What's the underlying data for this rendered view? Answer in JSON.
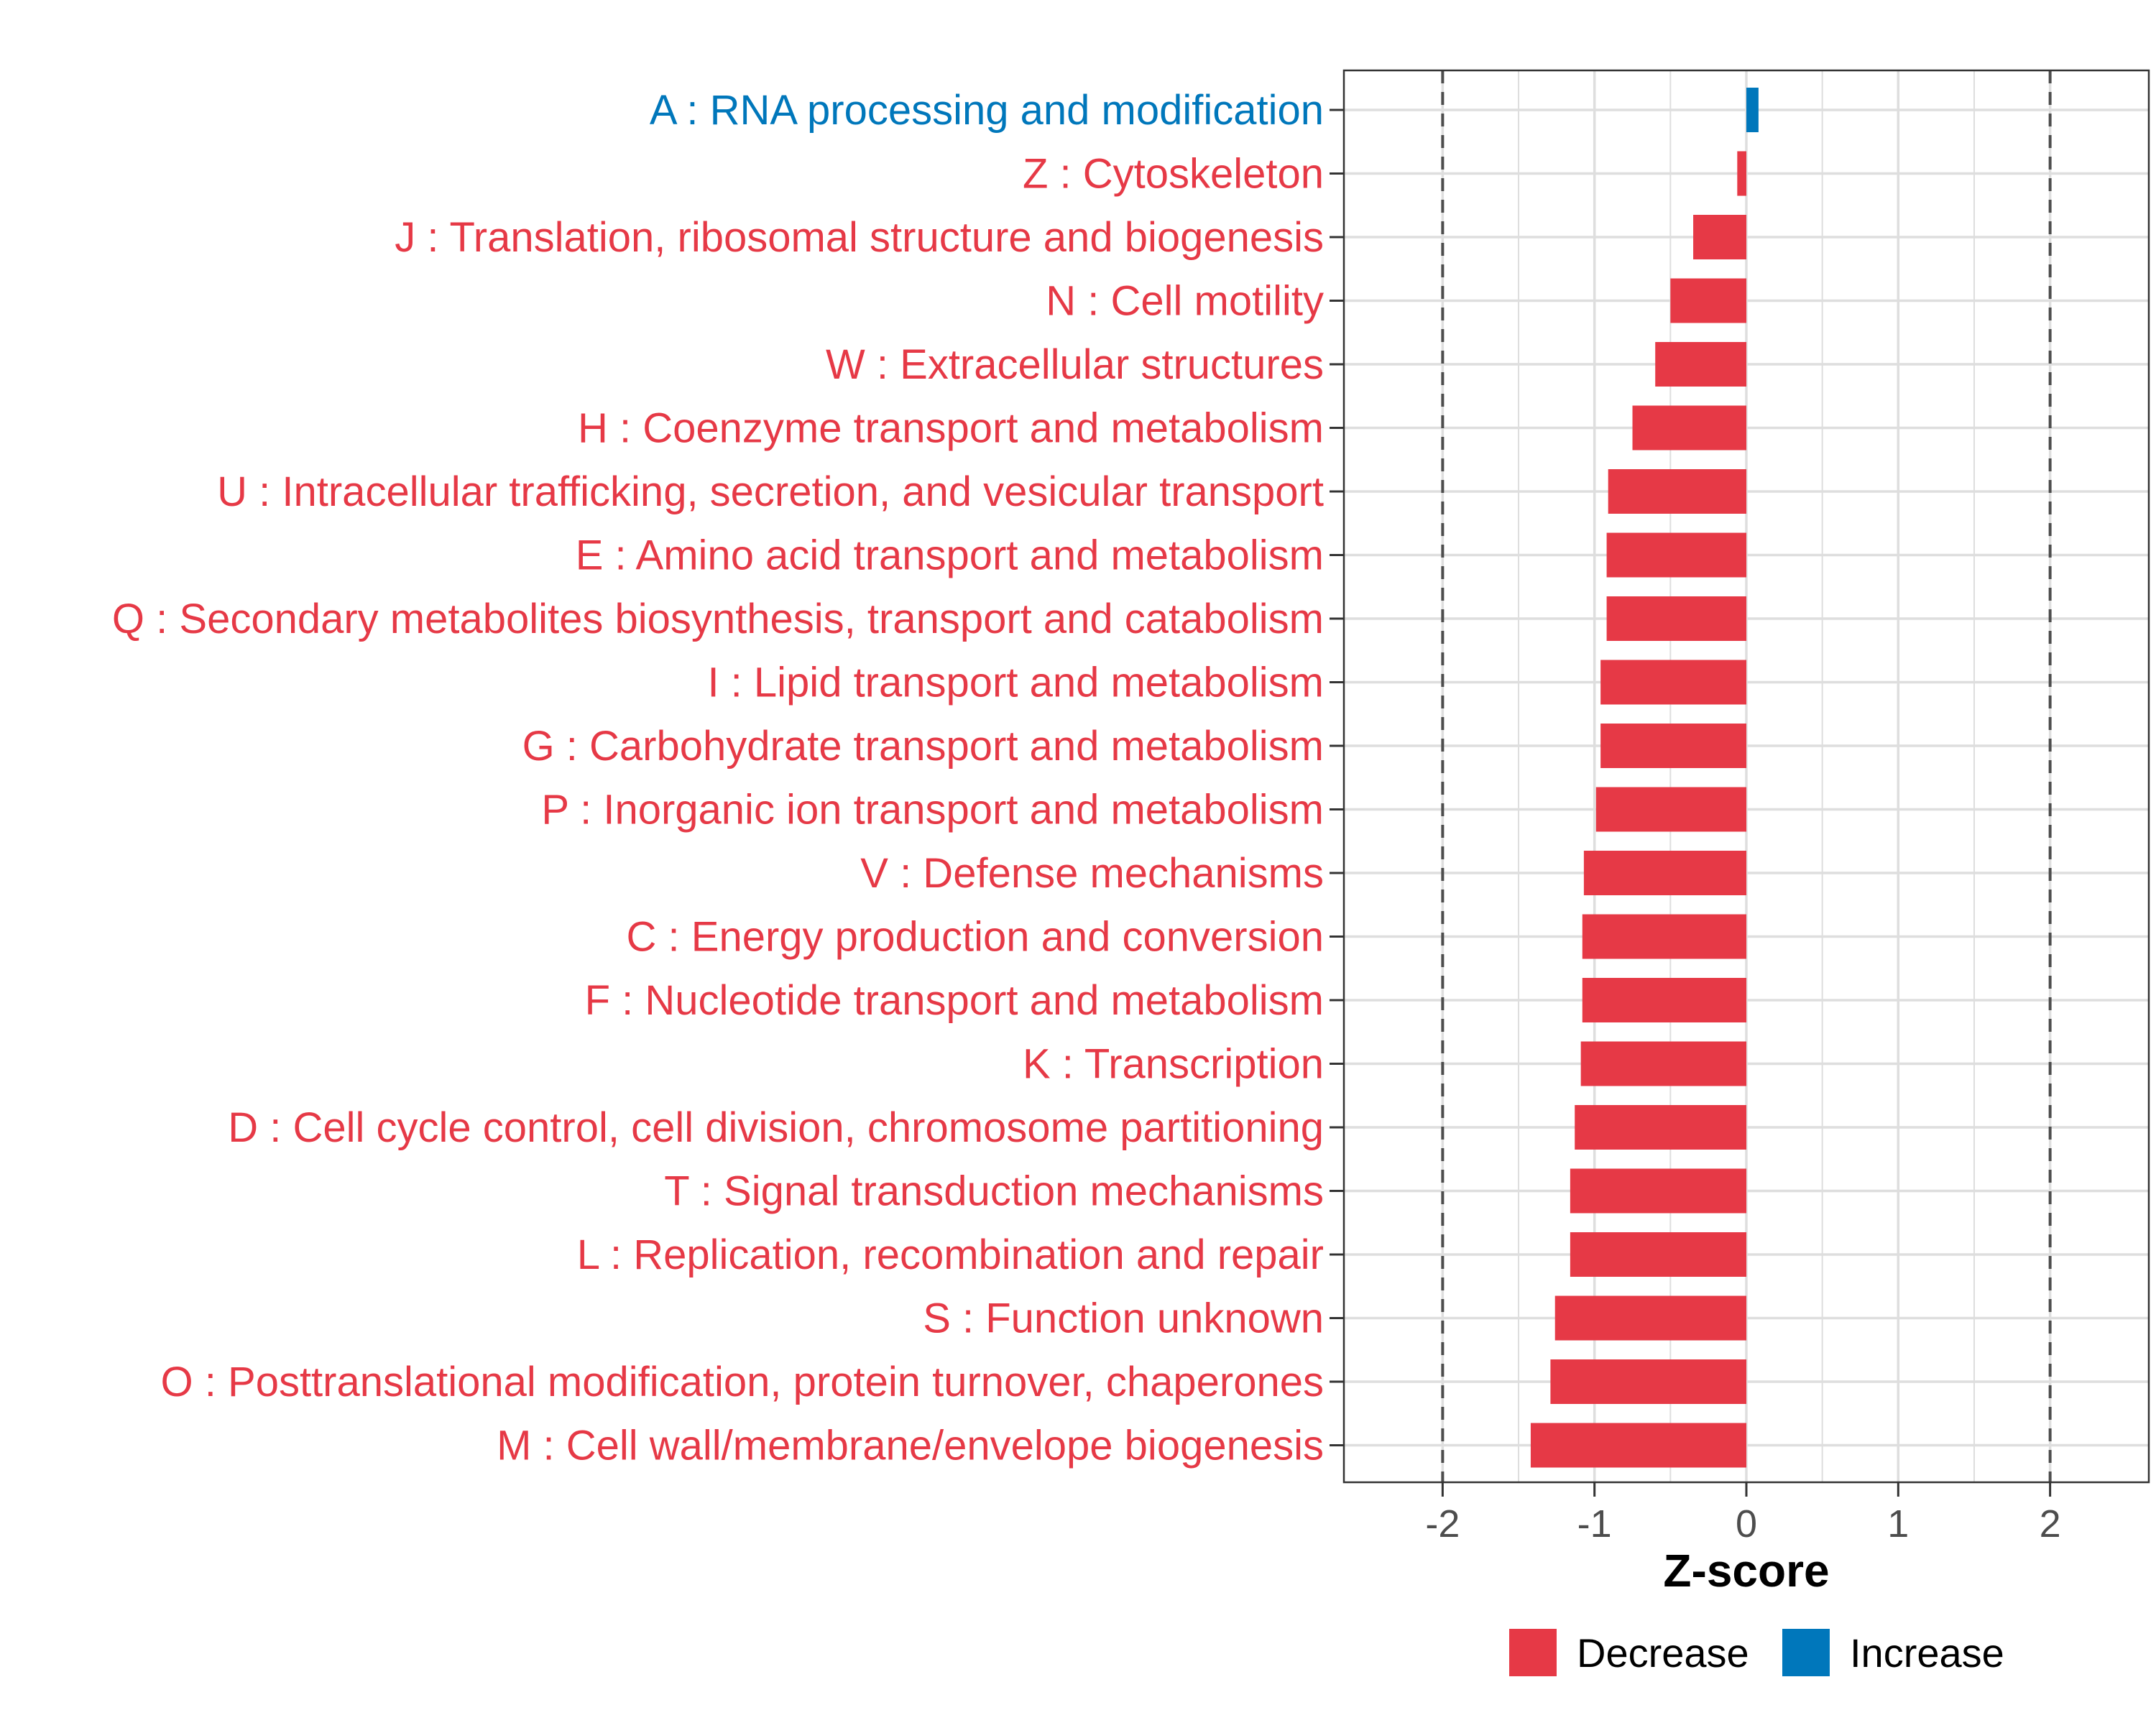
{
  "chart_data": {
    "type": "bar",
    "orientation": "horizontal",
    "title": "",
    "xlabel": "Z-score",
    "ylabel": "",
    "xlim": [
      -2.65,
      2.65
    ],
    "xticks": [
      -2,
      -1,
      0,
      1,
      2
    ],
    "xtick_labels": [
      "-2",
      "-1",
      "0",
      "1",
      "2"
    ],
    "reference_lines": [
      -2,
      2
    ],
    "grid": true,
    "categories": [
      "A : RNA processing and modification",
      "Z : Cytoskeleton",
      "J : Translation, ribosomal structure and biogenesis",
      "N : Cell motility",
      "W : Extracellular structures",
      "H : Coenzyme transport and metabolism",
      "U : Intracellular trafficking, secretion, and vesicular transport",
      "E : Amino acid transport and metabolism",
      "Q : Secondary metabolites biosynthesis, transport and catabolism",
      "I : Lipid transport and metabolism",
      "G : Carbohydrate transport and metabolism",
      "P : Inorganic ion transport and metabolism",
      "V : Defense mechanisms",
      "C : Energy production and conversion",
      "F : Nucleotide transport and metabolism",
      "K : Transcription",
      "D : Cell cycle control, cell division, chromosome partitioning",
      "T : Signal transduction mechanisms",
      "L : Replication, recombination and repair",
      "S : Function unknown",
      "O : Posttranslational modification, protein turnover, chaperones",
      "M : Cell wall/membrane/envelope biogenesis"
    ],
    "values": [
      0.08,
      -0.06,
      -0.35,
      -0.5,
      -0.6,
      -0.75,
      -0.91,
      -0.92,
      -0.92,
      -0.96,
      -0.96,
      -0.99,
      -1.07,
      -1.08,
      -1.08,
      -1.09,
      -1.13,
      -1.16,
      -1.16,
      -1.26,
      -1.29,
      -1.42
    ],
    "direction": [
      "Increase",
      "Decrease",
      "Decrease",
      "Decrease",
      "Decrease",
      "Decrease",
      "Decrease",
      "Decrease",
      "Decrease",
      "Decrease",
      "Decrease",
      "Decrease",
      "Decrease",
      "Decrease",
      "Decrease",
      "Decrease",
      "Decrease",
      "Decrease",
      "Decrease",
      "Decrease",
      "Decrease",
      "Decrease"
    ],
    "legend": {
      "position": "bottom",
      "items": [
        {
          "label": "Decrease",
          "color": "#E63946"
        },
        {
          "label": "Increase",
          "color": "#0077BB"
        }
      ]
    },
    "colors": {
      "Decrease": "#E63946",
      "Increase": "#0077BB",
      "grid": "#DEDEDE",
      "reference_line": "#4D4D4D",
      "panel_border": "#333333"
    }
  }
}
